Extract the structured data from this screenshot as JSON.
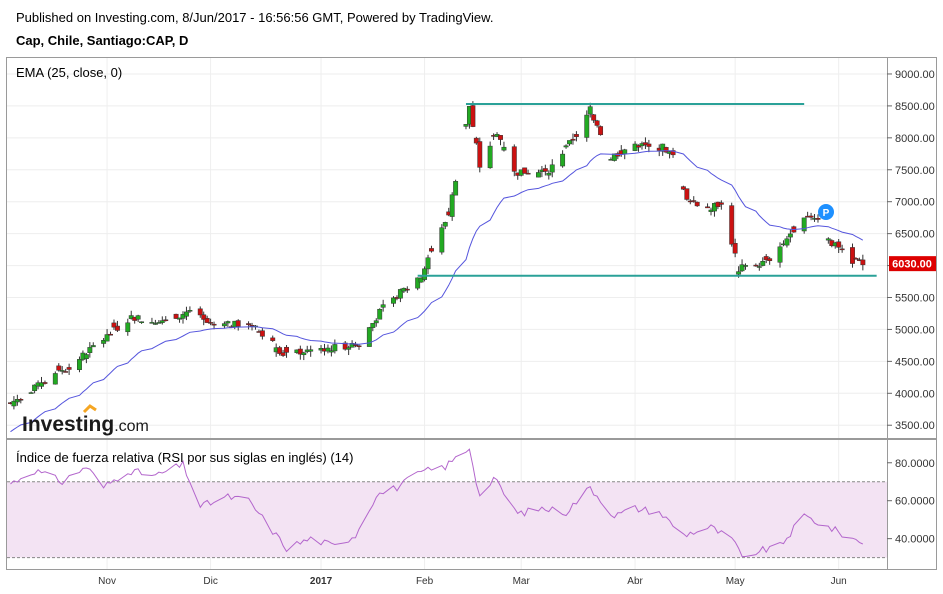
{
  "header": {
    "published": "Published on Investing.com, 8/Jun/2017 - 16:56:56 GMT, Powered by TradingView.",
    "instrument": "Cap, Chile, Santiago:CAP, D"
  },
  "brand": {
    "logo_text": "Investing",
    "logo_suffix": ".com"
  },
  "price_marker": {
    "label": "P"
  },
  "colors": {
    "up": "#22aa22",
    "down": "#cc1111",
    "ema": "#5555dd",
    "hline": "#2aa198",
    "rsi": "#b366cc",
    "rsi_band": "#f3e3f3",
    "last_label": "#dd0000"
  },
  "chart_data": [
    {
      "type": "candlestick",
      "indicator_label": "EMA (25, close, 0)",
      "ylim": [
        3300,
        9250
      ],
      "y_ticks": [
        3500,
        4000,
        4500,
        5000,
        5500,
        6000,
        6500,
        7000,
        7500,
        8000,
        8500,
        9000
      ],
      "y_tick_labels": [
        "3500.00",
        "4000.00",
        "4500.00",
        "5000.00",
        "5500.00",
        "6000.00",
        "6500.00",
        "7000.00",
        "7500.00",
        "8000.00",
        "8500.00",
        "9000.00"
      ],
      "last_price": 6030,
      "last_price_label": "6030.00",
      "horizontal_lines": [
        {
          "y": 8530,
          "from": "2017-02-13",
          "to": "2017-05-22"
        },
        {
          "y": 5840,
          "from": "2017-01-30",
          "to": "2017-06-12"
        }
      ],
      "anchors": [
        [
          "2016-10-04",
          3850
        ],
        [
          "2016-10-20",
          4380
        ],
        [
          "2016-10-31",
          4850
        ],
        [
          "2016-11-08",
          5200
        ],
        [
          "2016-11-18",
          5100
        ],
        [
          "2016-11-25",
          5300
        ],
        [
          "2016-12-01",
          5050
        ],
        [
          "2016-12-13",
          5100
        ],
        [
          "2016-12-22",
          4620
        ],
        [
          "2017-01-03",
          4700
        ],
        [
          "2017-01-13",
          4760
        ],
        [
          "2017-01-20",
          5350
        ],
        [
          "2017-01-31",
          5850
        ],
        [
          "2017-02-08",
          6800
        ],
        [
          "2017-02-14",
          8500
        ],
        [
          "2017-02-17",
          7550
        ],
        [
          "2017-02-22",
          8100
        ],
        [
          "2017-02-27",
          7450
        ],
        [
          "2017-03-09",
          7500
        ],
        [
          "2017-03-17",
          8050
        ],
        [
          "2017-03-21",
          8450
        ],
        [
          "2017-03-27",
          7700
        ],
        [
          "2017-04-03",
          7900
        ],
        [
          "2017-04-11",
          7850
        ],
        [
          "2017-04-14",
          7700
        ],
        [
          "2017-04-18",
          7000
        ],
        [
          "2017-04-25",
          6900
        ],
        [
          "2017-04-28",
          7000
        ],
        [
          "2017-05-03",
          5950
        ],
        [
          "2017-05-11",
          6050
        ],
        [
          "2017-05-16",
          6350
        ],
        [
          "2017-05-22",
          6800
        ],
        [
          "2017-05-26",
          6750
        ],
        [
          "2017-05-30",
          6350
        ],
        [
          "2017-06-05",
          6080
        ],
        [
          "2017-06-08",
          6030
        ]
      ],
      "ema_period": 25
    },
    {
      "type": "line",
      "indicator_label": "Índice de fuerza relativa (RSI por sus siglas en inglés) (14)",
      "ylim": [
        24,
        92
      ],
      "y_ticks": [
        40,
        60,
        80
      ],
      "y_tick_labels": [
        "40.0000",
        "60.0000",
        "80.0000"
      ],
      "band": [
        30,
        70
      ],
      "anchors": [
        [
          "2016-10-04",
          69
        ],
        [
          "2016-10-11",
          76
        ],
        [
          "2016-10-19",
          70
        ],
        [
          "2016-10-26",
          78
        ],
        [
          "2016-10-31",
          67
        ],
        [
          "2016-11-07",
          76
        ],
        [
          "2016-11-15",
          73
        ],
        [
          "2016-11-23",
          79
        ],
        [
          "2016-11-28",
          57
        ],
        [
          "2016-12-06",
          62
        ],
        [
          "2016-12-12",
          60
        ],
        [
          "2016-12-19",
          44
        ],
        [
          "2016-12-23",
          35
        ],
        [
          "2016-12-30",
          40
        ],
        [
          "2017-01-06",
          36
        ],
        [
          "2017-01-12",
          42
        ],
        [
          "2017-01-18",
          63
        ],
        [
          "2017-01-24",
          67
        ],
        [
          "2017-01-31",
          75
        ],
        [
          "2017-02-07",
          78
        ],
        [
          "2017-02-14",
          88
        ],
        [
          "2017-02-17",
          62
        ],
        [
          "2017-02-21",
          72
        ],
        [
          "2017-02-28",
          53
        ],
        [
          "2017-03-07",
          56
        ],
        [
          "2017-03-14",
          54
        ],
        [
          "2017-03-21",
          67
        ],
        [
          "2017-03-28",
          52
        ],
        [
          "2017-04-03",
          56
        ],
        [
          "2017-04-10",
          54
        ],
        [
          "2017-04-17",
          42
        ],
        [
          "2017-04-25",
          46
        ],
        [
          "2017-05-02",
          38
        ],
        [
          "2017-05-04",
          29
        ],
        [
          "2017-05-08",
          33
        ],
        [
          "2017-05-15",
          36
        ],
        [
          "2017-05-22",
          52
        ],
        [
          "2017-05-29",
          46
        ],
        [
          "2017-06-05",
          40
        ],
        [
          "2017-06-08",
          38
        ]
      ]
    }
  ],
  "x_axis": {
    "labels": [
      {
        "date": "2016-11-01",
        "text": "Nov",
        "bold": false
      },
      {
        "date": "2016-12-01",
        "text": "Dic",
        "bold": false
      },
      {
        "date": "2017-01-02",
        "text": "2017",
        "bold": true
      },
      {
        "date": "2017-02-01",
        "text": "Feb",
        "bold": false
      },
      {
        "date": "2017-03-01",
        "text": "Mar",
        "bold": false
      },
      {
        "date": "2017-04-03",
        "text": "Abr",
        "bold": false
      },
      {
        "date": "2017-05-02",
        "text": "May",
        "bold": false
      },
      {
        "date": "2017-06-01",
        "text": "Jun",
        "bold": false
      }
    ],
    "range": [
      "2016-10-03",
      "2017-06-15"
    ]
  }
}
